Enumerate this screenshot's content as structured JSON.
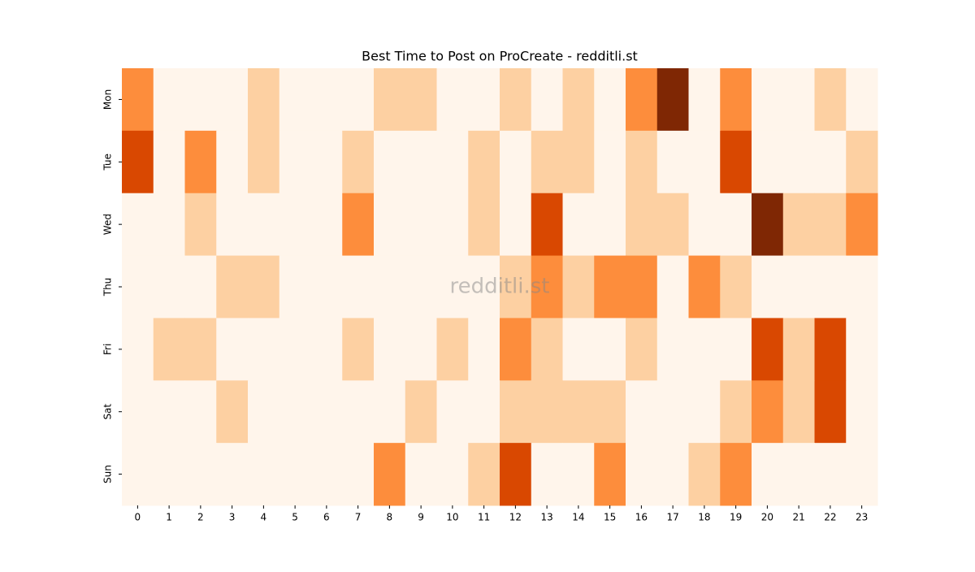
{
  "chart_data": {
    "type": "heatmap",
    "title": "Best Time to Post on ProCreate - redditli.st",
    "watermark": "redditli.st",
    "x_categories": [
      "0",
      "1",
      "2",
      "3",
      "4",
      "5",
      "6",
      "7",
      "8",
      "9",
      "10",
      "11",
      "12",
      "13",
      "14",
      "15",
      "16",
      "17",
      "18",
      "19",
      "20",
      "21",
      "22",
      "23"
    ],
    "y_categories": [
      "Mon",
      "Tue",
      "Wed",
      "Thu",
      "Fri",
      "Sat",
      "Sun"
    ],
    "values": [
      [
        2,
        0,
        0,
        0,
        1,
        0,
        0,
        0,
        1,
        1,
        0,
        0,
        1,
        0,
        1,
        0,
        2,
        4,
        0,
        2,
        0,
        0,
        1,
        0
      ],
      [
        3,
        0,
        2,
        0,
        1,
        0,
        0,
        1,
        0,
        0,
        0,
        1,
        0,
        1,
        1,
        0,
        1,
        0,
        0,
        3,
        0,
        0,
        0,
        1
      ],
      [
        0,
        0,
        1,
        0,
        0,
        0,
        0,
        2,
        0,
        0,
        0,
        1,
        0,
        3,
        0,
        0,
        1,
        1,
        0,
        0,
        4,
        1,
        1,
        2
      ],
      [
        0,
        0,
        0,
        1,
        1,
        0,
        0,
        0,
        0,
        0,
        0,
        0,
        1,
        2,
        1,
        2,
        2,
        0,
        2,
        1,
        0,
        0,
        0,
        0
      ],
      [
        0,
        1,
        1,
        0,
        0,
        0,
        0,
        1,
        0,
        0,
        1,
        0,
        2,
        1,
        0,
        0,
        1,
        0,
        0,
        0,
        3,
        1,
        3,
        0
      ],
      [
        0,
        0,
        0,
        1,
        0,
        0,
        0,
        0,
        0,
        1,
        0,
        0,
        1,
        1,
        1,
        1,
        0,
        0,
        0,
        1,
        2,
        1,
        3,
        0
      ],
      [
        0,
        0,
        0,
        0,
        0,
        0,
        0,
        0,
        2,
        0,
        0,
        1,
        3,
        0,
        0,
        2,
        0,
        0,
        1,
        2,
        0,
        0,
        0,
        0
      ]
    ],
    "zlim": [
      0,
      4
    ],
    "colormap": [
      "#fff5eb",
      "#fdd0a2",
      "#fd8d3c",
      "#d94801",
      "#7f2704"
    ]
  }
}
